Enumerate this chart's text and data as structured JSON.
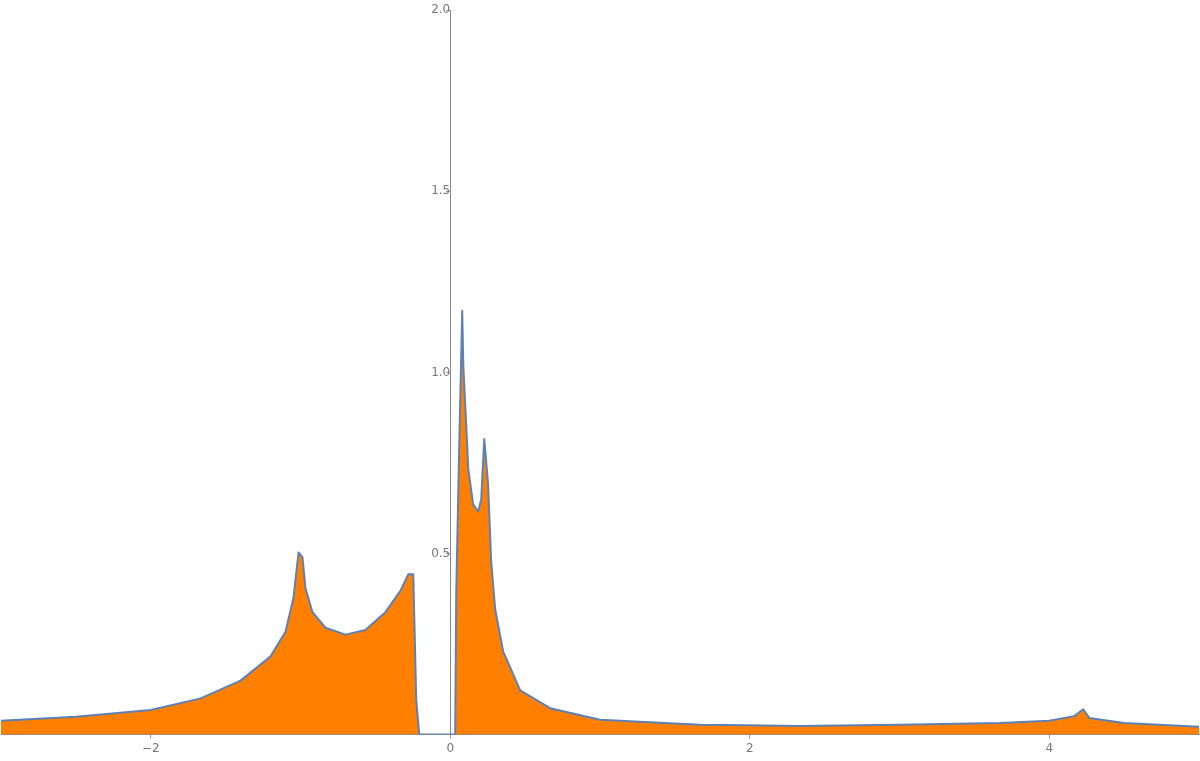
{
  "chart_data": {
    "type": "area",
    "x": [
      -3,
      -2.5,
      -2,
      -1.667,
      -1.4,
      -1.2,
      -1.1,
      -1.047,
      -1.013,
      -0.987,
      -0.967,
      -0.92,
      -0.833,
      -0.7,
      -0.567,
      -0.433,
      -0.333,
      -0.28,
      -0.247,
      -0.227,
      -0.207,
      0.013,
      0.033,
      0.04,
      0.06,
      0.08,
      0.087,
      0.113,
      0.12,
      0.153,
      0.187,
      0.207,
      0.227,
      0.253,
      0.273,
      0.3,
      0.353,
      0.467,
      0.667,
      1.0,
      1.667,
      2.333,
      3.0,
      3.667,
      4.0,
      4.167,
      4.227,
      4.267,
      4.5,
      5
    ],
    "series": [
      {
        "color": "#ff8000",
        "values": [
          0.038,
          0.049,
          0.068,
          0.1,
          0.149,
          0.216,
          0.284,
          0.378,
          0.503,
          0.49,
          0.405,
          0.338,
          0.295,
          0.276,
          0.289,
          0.338,
          0.397,
          0.443,
          0.443,
          0.095,
          0,
          0,
          0,
          0.39,
          0.8,
          1.17,
          1.02,
          0.8,
          0.735,
          0.635,
          0.616,
          0.65,
          0.816,
          0.69,
          0.48,
          0.346,
          0.23,
          0.122,
          0.073,
          0.041,
          0.027,
          0.024,
          0.027,
          0.032,
          0.038,
          0.051,
          0.07,
          0.046,
          0.032,
          0.022
        ]
      }
    ],
    "xlim": [
      -3,
      5
    ],
    "ylim": [
      0,
      2
    ],
    "xticks": [
      -2,
      0,
      2,
      4
    ],
    "yticks": [
      0.5,
      {
        "value": 1,
        "label": "1.0"
      },
      1.5,
      {
        "value": 2,
        "label": "2.0"
      }
    ],
    "grid": false,
    "legend": false
  }
}
